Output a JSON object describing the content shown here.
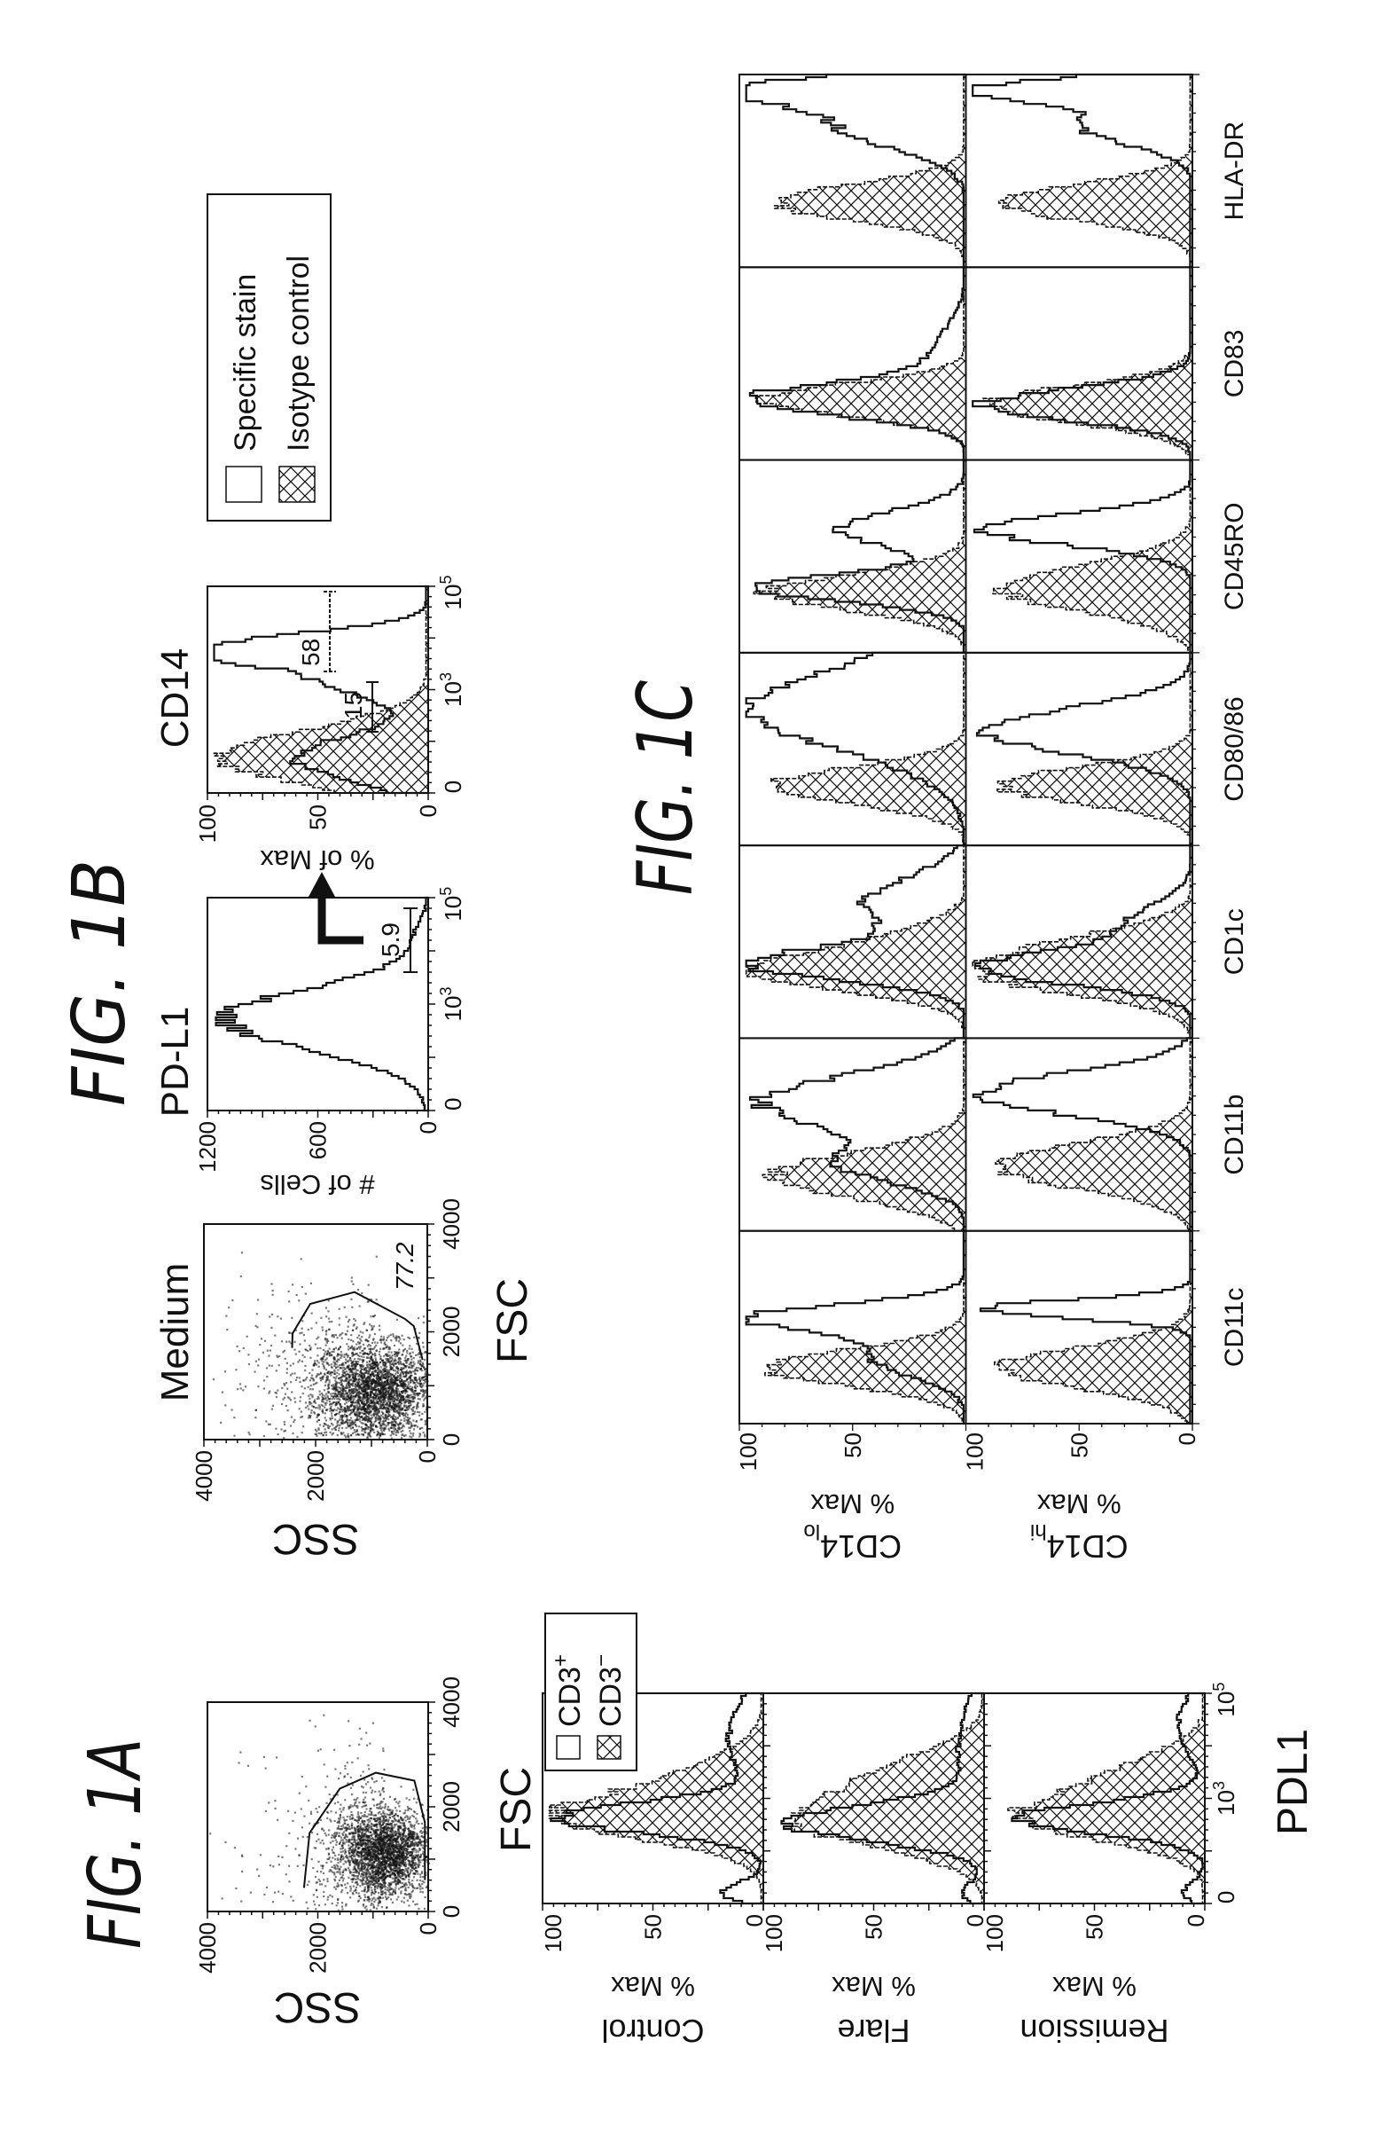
{
  "figure_labels": {
    "a": "FIG. 1A",
    "b": "FIG. 1B",
    "c": "FIG. 1C"
  },
  "colors": {
    "ink": "#111111",
    "paper": "#ffffff"
  },
  "chart_data": [
    {
      "id": "fig1a-scatter",
      "type": "scatter",
      "xlabel": "FSC",
      "ylabel": "SSC",
      "xlim": [
        0,
        4000
      ],
      "ylim": [
        0,
        4000
      ],
      "xticks": [
        "0",
        "2000",
        "4000"
      ],
      "yticks": [
        "0",
        "2000",
        "4000"
      ],
      "population": {
        "fsc_center": 1100,
        "ssc_center": 800,
        "fsc_sd": 430,
        "ssc_sd": 400
      },
      "gate": [
        [
          450,
          2250
        ],
        [
          1500,
          2150
        ],
        [
          2350,
          1600
        ],
        [
          2650,
          950
        ],
        [
          2500,
          250
        ],
        [
          1700,
          60
        ],
        [
          600,
          60
        ]
      ]
    },
    {
      "id": "fig1a-histograms",
      "type": "area",
      "xlabel": "PDL1",
      "xticks": [
        {
          "label": "0",
          "value": 0
        },
        {
          "label": "10",
          "sup": "3",
          "value": 1000
        },
        {
          "label": "10",
          "sup": "5",
          "value": 100000
        }
      ],
      "legend": [
        {
          "label": "CD3",
          "sup": "+",
          "style": "open"
        },
        {
          "label": "CD3",
          "sup": "−",
          "style": "hatched"
        }
      ],
      "rows": [
        {
          "label": "Control",
          "ylabel": "% Max",
          "yticks": [
            "0",
            "50",
            "100"
          ],
          "specific": [
            {
              "mode_log10": 2.6,
              "pct": 92,
              "sd": 0.3
            },
            {
              "mode_log10": 4.2,
              "pct": 16,
              "sd": 0.8
            },
            {
              "mode_log10": 1.1,
              "pct": 18,
              "sd": 0.2
            }
          ],
          "isotype": [
            {
              "mode_log10": 2.6,
              "pct": 86,
              "sd": 0.45
            },
            {
              "mode_log10": 3.4,
              "pct": 30,
              "sd": 0.5
            }
          ]
        },
        {
          "label": "Flare",
          "ylabel": "% Max",
          "yticks": [
            "0",
            "50",
            "100"
          ],
          "specific": [
            {
              "mode_log10": 2.5,
              "pct": 88,
              "sd": 0.35
            },
            {
              "mode_log10": 4.0,
              "pct": 12,
              "sd": 0.9
            },
            {
              "mode_log10": 1.1,
              "pct": 10,
              "sd": 0.2
            }
          ],
          "isotype": [
            {
              "mode_log10": 2.5,
              "pct": 82,
              "sd": 0.5
            },
            {
              "mode_log10": 3.5,
              "pct": 40,
              "sd": 0.5
            }
          ]
        },
        {
          "label": "Remission",
          "ylabel": "% Max",
          "yticks": [
            "0",
            "50",
            "100"
          ],
          "specific": [
            {
              "mode_log10": 2.6,
              "pct": 85,
              "sd": 0.3
            },
            {
              "mode_log10": 4.5,
              "pct": 12,
              "sd": 0.6
            },
            {
              "mode_log10": 1.1,
              "pct": 10,
              "sd": 0.2
            }
          ],
          "isotype": [
            {
              "mode_log10": 2.6,
              "pct": 80,
              "sd": 0.45
            },
            {
              "mode_log10": 3.5,
              "pct": 35,
              "sd": 0.45
            }
          ]
        }
      ]
    },
    {
      "id": "fig1b-medium-scatter",
      "type": "scatter",
      "title": "Medium",
      "xlabel": "FSC",
      "ylabel": "SSC",
      "xlim": [
        0,
        4000
      ],
      "ylim": [
        0,
        4000
      ],
      "xticks": [
        "0",
        "2000",
        "4000"
      ],
      "yticks": [
        "0",
        "2000",
        "4000"
      ],
      "gate_percent": "77.2",
      "population": {
        "fsc_center": 900,
        "ssc_center": 900,
        "fsc_sd": 480,
        "ssc_sd": 520
      },
      "gate": [
        [
          1700,
          2420
        ],
        [
          1970,
          2413
        ],
        [
          2519,
          2095
        ],
        [
          2737,
          1302
        ],
        [
          2240,
          402
        ],
        [
          2107,
          243
        ],
        [
          1480,
          84
        ]
      ]
    },
    {
      "id": "fig1b-pdl1-histogram",
      "type": "area",
      "title": "PD-L1",
      "ylabel": "# of Cells",
      "ylim": [
        0,
        1200
      ],
      "yticks": [
        "0",
        "600",
        "1200"
      ],
      "xticks": [
        {
          "label": "0",
          "value": 0
        },
        {
          "label": "10",
          "sup": "3",
          "value": 1000
        },
        {
          "label": "10",
          "sup": "5",
          "value": 100000
        }
      ],
      "gate_percent": "5.9",
      "specific": [
        {
          "mode_log10": 2.7,
          "pct": 1100,
          "sd": 0.6
        },
        {
          "mode_log10": 4.4,
          "pct": 60,
          "sd": 0.3
        }
      ]
    },
    {
      "id": "fig1b-cd14-histogram",
      "type": "area",
      "title": "CD14",
      "ylabel": "% of Max",
      "yticks": [
        "0",
        "50",
        "100"
      ],
      "xticks": [
        {
          "label": "0",
          "value": 0
        },
        {
          "label": "10",
          "sup": "3",
          "value": 1000
        },
        {
          "label": "10",
          "sup": "5",
          "value": 100000
        }
      ],
      "gates": [
        "15",
        "58"
      ],
      "specific": [
        {
          "mode_log10": 1.6,
          "pct": 60,
          "sd": 0.45
        },
        {
          "mode_log10": 3.85,
          "pct": 95,
          "sd": 0.3
        },
        {
          "mode_log10": 3.2,
          "pct": 42,
          "sd": 0.4
        }
      ],
      "isotype": [
        {
          "mode_log10": 1.6,
          "pct": 95,
          "sd": 0.55
        }
      ]
    },
    {
      "id": "fig1b-legend",
      "type": "legend",
      "items": [
        {
          "label": "Specific stain",
          "style": "open"
        },
        {
          "label": "Isotype control",
          "style": "hatched"
        }
      ]
    },
    {
      "id": "fig1c-grid",
      "type": "area",
      "columns": [
        "CD11c",
        "CD11b",
        "CD1c",
        "CD80/86",
        "CD45RO",
        "CD83",
        "HLA-DR"
      ],
      "rows": [
        {
          "label": "CD14",
          "sup": "lo",
          "ylabel": "% Max",
          "yticks": [
            "50",
            "100"
          ],
          "panels": [
            {
              "specific": [
                {
                  "mode_log10": 3.2,
                  "pct": 95,
                  "sd": 0.3
                },
                {
                  "mode_log10": 2.3,
                  "pct": 40,
                  "sd": 0.4
                }
              ],
              "isotype": [
                {
                  "mode_log10": 2.1,
                  "pct": 88,
                  "sd": 0.4
                }
              ]
            },
            {
              "specific": [
                {
                  "mode_log10": 3.7,
                  "pct": 90,
                  "sd": 0.6
                },
                {
                  "mode_log10": 2.3,
                  "pct": 50,
                  "sd": 0.4
                }
              ],
              "isotype": [
                {
                  "mode_log10": 2.1,
                  "pct": 85,
                  "sd": 0.5
                }
              ]
            },
            {
              "specific": [
                {
                  "mode_log10": 2.5,
                  "pct": 92,
                  "sd": 0.35
                },
                {
                  "mode_log10": 3.8,
                  "pct": 45,
                  "sd": 0.6
                }
              ],
              "isotype": [
                {
                  "mode_log10": 2.3,
                  "pct": 88,
                  "sd": 0.4
                },
                {
                  "mode_log10": 3.0,
                  "pct": 30,
                  "sd": 0.4
                }
              ]
            },
            {
              "specific": [
                {
                  "mode_log10": 3.9,
                  "pct": 95,
                  "sd": 0.9
                }
              ],
              "isotype": [
                {
                  "mode_log10": 2.2,
                  "pct": 86,
                  "sd": 0.4
                }
              ]
            },
            {
              "specific": [
                {
                  "mode_log10": 2.3,
                  "pct": 92,
                  "sd": 0.3
                },
                {
                  "mode_log10": 3.6,
                  "pct": 55,
                  "sd": 0.4
                }
              ],
              "isotype": [
                {
                  "mode_log10": 2.2,
                  "pct": 88,
                  "sd": 0.4
                }
              ]
            },
            {
              "specific": [
                {
                  "mode_log10": 2.2,
                  "pct": 95,
                  "sd": 0.35
                },
                {
                  "mode_log10": 3.2,
                  "pct": 15,
                  "sd": 0.6
                }
              ],
              "isotype": [
                {
                  "mode_log10": 2.2,
                  "pct": 92,
                  "sd": 0.35
                }
              ]
            },
            {
              "specific": [
                {
                  "mode_log10": 4.8,
                  "pct": 95,
                  "sd": 0.3
                },
                {
                  "mode_log10": 4.0,
                  "pct": 55,
                  "sd": 0.5
                }
              ],
              "isotype": [
                {
                  "mode_log10": 2.3,
                  "pct": 84,
                  "sd": 0.4
                }
              ]
            }
          ]
        },
        {
          "label": "CD14",
          "sup": "hi",
          "ylabel": "% Max",
          "yticks": [
            "0",
            "50",
            "100"
          ],
          "panels": [
            {
              "specific": [
                {
                  "mode_log10": 3.4,
                  "pct": 95,
                  "sd": 0.2
                }
              ],
              "isotype": [
                {
                  "mode_log10": 2.1,
                  "pct": 85,
                  "sd": 0.45
                }
              ]
            },
            {
              "specific": [
                {
                  "mode_log10": 3.9,
                  "pct": 95,
                  "sd": 0.45
                }
              ],
              "isotype": [
                {
                  "mode_log10": 2.3,
                  "pct": 85,
                  "sd": 0.5
                }
              ]
            },
            {
              "specific": [
                {
                  "mode_log10": 2.4,
                  "pct": 88,
                  "sd": 0.35
                },
                {
                  "mode_log10": 3.3,
                  "pct": 30,
                  "sd": 0.5
                }
              ],
              "isotype": [
                {
                  "mode_log10": 2.3,
                  "pct": 90,
                  "sd": 0.45
                },
                {
                  "mode_log10": 3.0,
                  "pct": 35,
                  "sd": 0.4
                }
              ]
            },
            {
              "specific": [
                {
                  "mode_log10": 3.4,
                  "pct": 90,
                  "sd": 0.5
                }
              ],
              "isotype": [
                {
                  "mode_log10": 2.2,
                  "pct": 85,
                  "sd": 0.4
                }
              ]
            },
            {
              "specific": [
                {
                  "mode_log10": 3.6,
                  "pct": 92,
                  "sd": 0.35
                }
              ],
              "isotype": [
                {
                  "mode_log10": 2.3,
                  "pct": 85,
                  "sd": 0.5
                }
              ]
            },
            {
              "specific": [
                {
                  "mode_log10": 2.1,
                  "pct": 92,
                  "sd": 0.35
                }
              ],
              "isotype": [
                {
                  "mode_log10": 2.1,
                  "pct": 90,
                  "sd": 0.4
                }
              ]
            },
            {
              "specific": [
                {
                  "mode_log10": 4.8,
                  "pct": 95,
                  "sd": 0.25
                },
                {
                  "mode_log10": 4.0,
                  "pct": 50,
                  "sd": 0.4
                }
              ],
              "isotype": [
                {
                  "mode_log10": 2.3,
                  "pct": 85,
                  "sd": 0.4
                }
              ]
            }
          ]
        }
      ]
    }
  ]
}
